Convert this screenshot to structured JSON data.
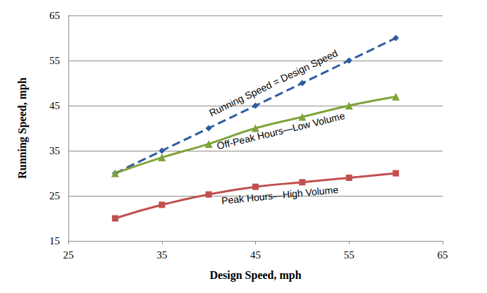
{
  "chart_data": {
    "type": "line",
    "x_label": "Design Speed, mph",
    "y_label": "Running Speed, mph",
    "x": [
      30,
      35,
      40,
      45,
      50,
      55,
      60
    ],
    "series": [
      {
        "name": "Running Speed = Design Speed",
        "color": "#2F5C9E",
        "marker": "diamond",
        "line_style": "dashed",
        "values": [
          30,
          35,
          40,
          45,
          50,
          55,
          60
        ]
      },
      {
        "name": "Off-Peak Hours—Low Volume",
        "color": "#7FA33A",
        "marker": "triangle",
        "line_style": "solid",
        "values": [
          30,
          33.5,
          36.5,
          40,
          42.5,
          45,
          47
        ]
      },
      {
        "name": "Peak Hours—High Volume",
        "color": "#C0504D",
        "marker": "square",
        "line_style": "solid",
        "values": [
          20,
          23,
          25.3,
          27,
          28,
          29,
          30
        ]
      }
    ],
    "xlim": [
      25,
      65
    ],
    "xticks": [
      25,
      35,
      45,
      55,
      65
    ],
    "ylim": [
      15,
      65
    ],
    "yticks": [
      15,
      25,
      35,
      45,
      55,
      65
    ],
    "grid": true
  }
}
